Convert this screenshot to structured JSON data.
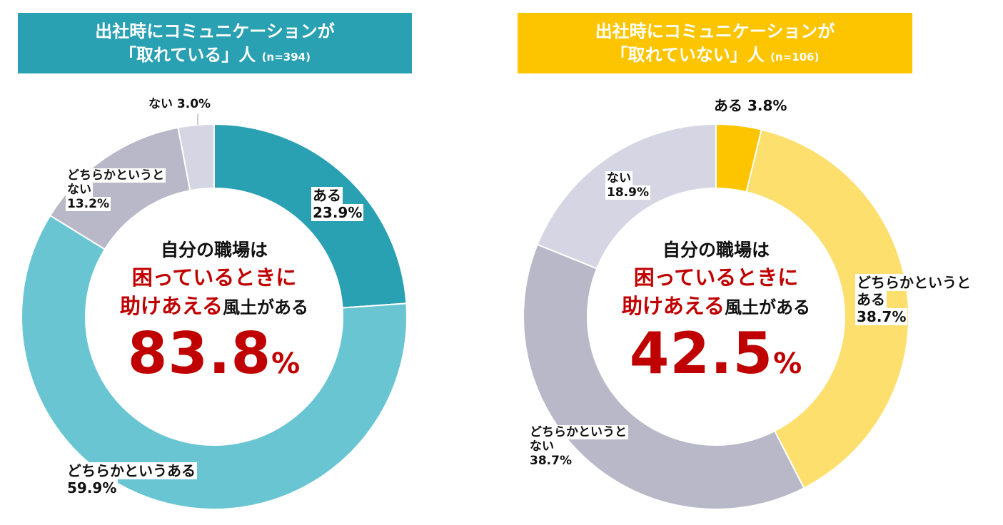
{
  "panels": [
    {
      "title_line1": "出社時にコミュニケーションが",
      "title_line2": "「取れている」人",
      "title_n": "(n=394)",
      "title_color": "#2aa0b3",
      "center_line1": "自分の職場は",
      "center_line2": "困っているときに",
      "center_line3_red": "助けあえる",
      "center_line3_black": "風土がある",
      "center_value": "83.8",
      "center_unit": "%",
      "labels": {
        "a": [
          "ある",
          "23.9%"
        ],
        "b": [
          "どちらかというある",
          "59.9%"
        ],
        "c": [
          "どちらかというと",
          "ない",
          "13.2%"
        ],
        "d": [
          "ない 3.0%"
        ]
      }
    },
    {
      "title_line1": "出社時にコミュニケーションが",
      "title_line2": "「取れていない」人",
      "title_n": "(n=106)",
      "title_color": "#fdc500",
      "center_line1": "自分の職場は",
      "center_line2": "困っているときに",
      "center_line3_red": "助けあえる",
      "center_line3_black": "風土がある",
      "center_value": "42.5",
      "center_unit": "%",
      "labels": {
        "a": [
          "ある 3.8%"
        ],
        "b": [
          "どちらかというと",
          "ある",
          "38.7%"
        ],
        "c": [
          "どちらかというと",
          "ない",
          "38.7%"
        ],
        "d": [
          "ない",
          "18.9%"
        ]
      }
    }
  ],
  "chart_data": [
    {
      "type": "pie",
      "variant": "donut",
      "title": "出社時にコミュニケーションが「取れている」人 (n=394)",
      "categories": [
        "ある",
        "どちらかというある",
        "どちらかというとない",
        "ない"
      ],
      "values": [
        23.9,
        59.9,
        13.2,
        3.0
      ],
      "colors": [
        "#2aa0b3",
        "#6ac5d3",
        "#b9b8c9",
        "#d6d5e3"
      ],
      "center_value": 83.8
    },
    {
      "type": "pie",
      "variant": "donut",
      "title": "出社時にコミュニケーションが「取れていない」人 (n=106)",
      "categories": [
        "ある",
        "どちらかというとある",
        "どちらかというとない",
        "ない"
      ],
      "values": [
        3.8,
        38.7,
        38.7,
        18.9
      ],
      "colors": [
        "#fdc500",
        "#fddf6e",
        "#b9b8c9",
        "#d6d5e3"
      ],
      "center_value": 42.5
    }
  ]
}
